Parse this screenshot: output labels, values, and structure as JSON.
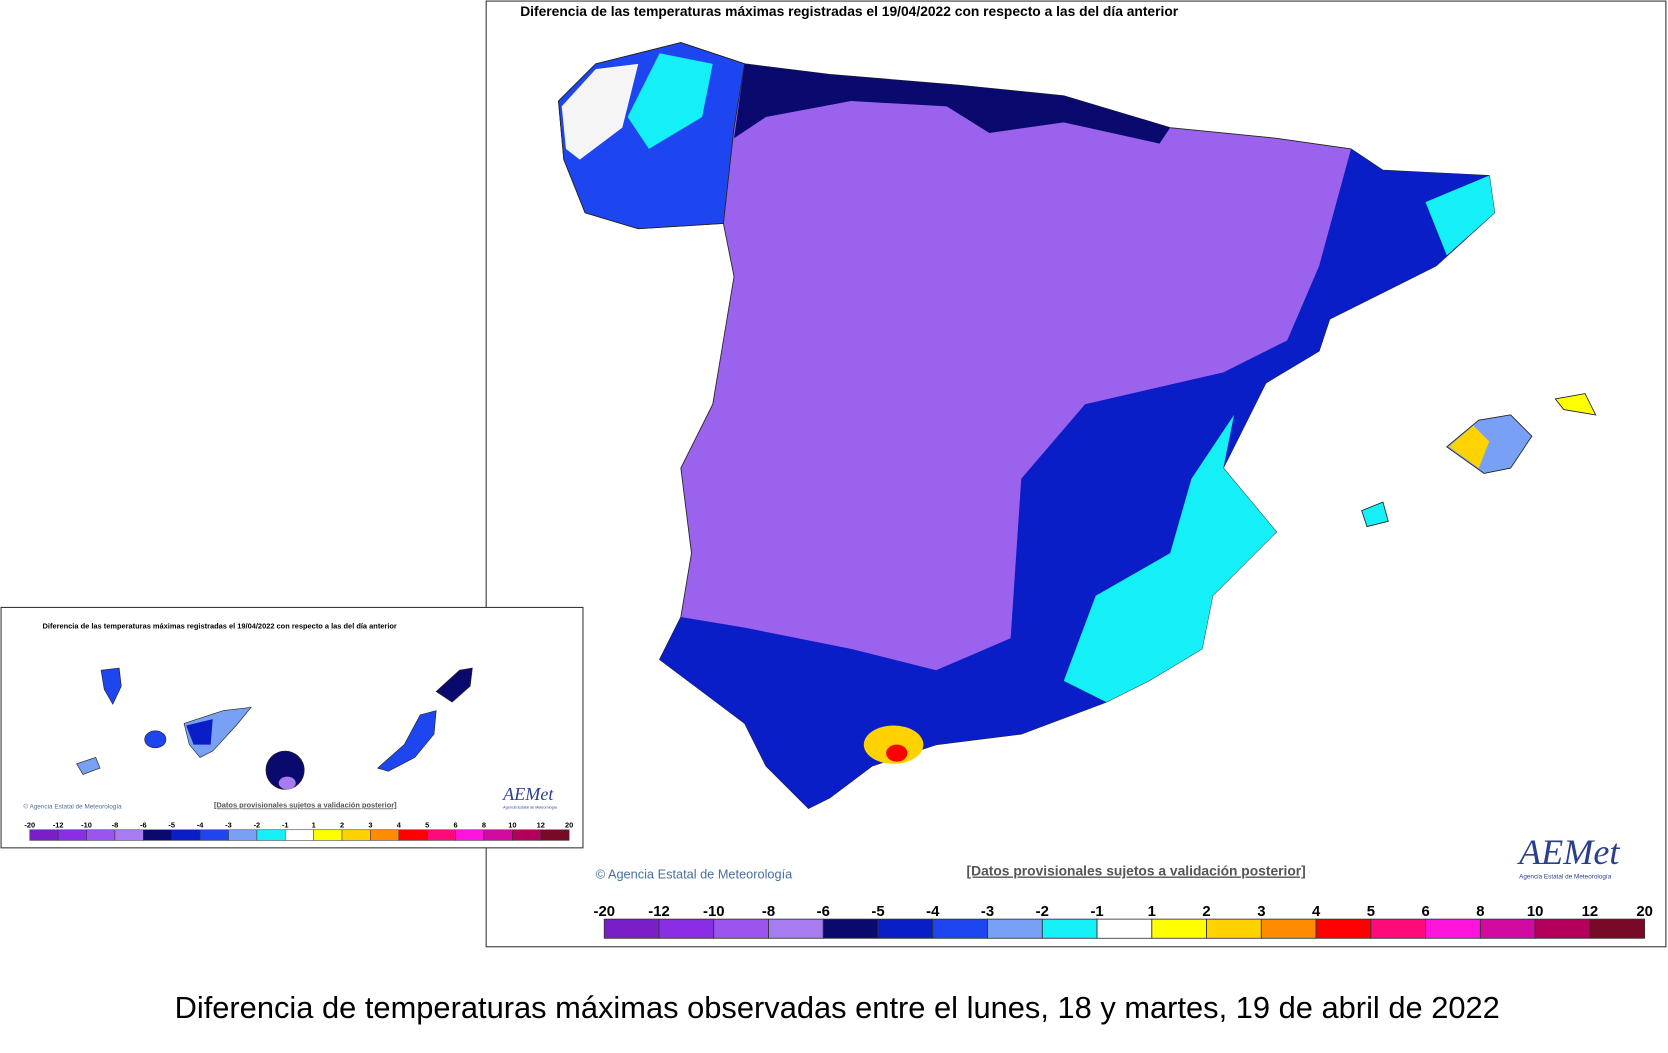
{
  "main_map": {
    "title": "Diferencia de las temperaturas máximas registradas el 19/04/2022 con respecto a las del día anterior",
    "copyright": "© Agencia Estatal de Meteorología",
    "note": "[Datos provisionales sujetos a validación posterior]",
    "logo": "AEMet",
    "logo_subtitle": "Agencia Estatal de Meteorología"
  },
  "canarias_map": {
    "title": "Diferencia de las temperaturas máximas registradas el 19/04/2022 con respecto a las del día anterior",
    "copyright": "© Agencia Estatal de Meteorología",
    "note": "[Datos provisionales sujetos a validación posterior]",
    "logo": "AEMet",
    "logo_subtitle": "Agencia Estatal de Meteorología"
  },
  "legend": {
    "ticks": [
      -20,
      -12,
      -10,
      -8,
      -6,
      -5,
      -4,
      -3,
      -2,
      -1,
      1,
      2,
      3,
      4,
      5,
      6,
      8,
      10,
      12,
      20
    ],
    "colors": [
      "#7a1fc8",
      "#8a2ee6",
      "#9a55ee",
      "#a67cf0",
      "#0a0a6e",
      "#0a1ec8",
      "#1e46f0",
      "#78a0f5",
      "#14f0f5",
      "#ffffff",
      "#ffff00",
      "#ffd200",
      "#ff8c00",
      "#ff0000",
      "#ff0a78",
      "#ff14dc",
      "#d20aa0",
      "#b4005a",
      "#780a28"
    ]
  },
  "caption": "Diferencia de temperaturas máximas observadas entre el lunes, 18 y martes, 19 de abril de 2022"
}
